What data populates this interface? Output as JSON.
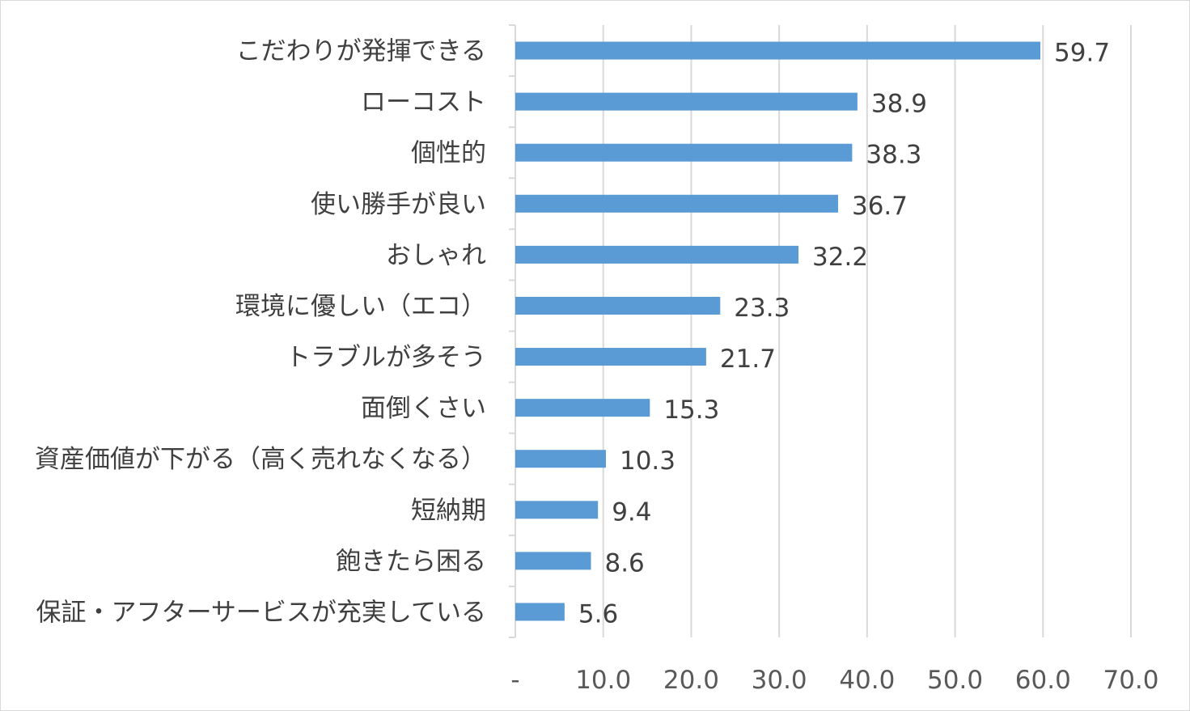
{
  "chart_data": {
    "type": "bar",
    "orientation": "horizontal",
    "categories": [
      "こだわりが発揮できる",
      "ローコスト",
      "個性的",
      "使い勝手が良い",
      "おしゃれ",
      "環境に優しい（エコ）",
      "トラブルが多そう",
      "面倒くさい",
      "資産価値が下がる（高く売れなくなる）",
      "短納期",
      "飽きたら困る",
      "保証・アフターサービスが充実している"
    ],
    "values": [
      59.7,
      38.9,
      38.3,
      36.7,
      32.2,
      23.3,
      21.7,
      15.3,
      10.3,
      9.4,
      8.6,
      5.6
    ],
    "value_labels": [
      "59.7",
      "38.9",
      "38.3",
      "36.7",
      "32.2",
      "23.3",
      "21.7",
      "15.3",
      "10.3",
      "9.4",
      "8.6",
      "5.6"
    ],
    "xlim": [
      0,
      70
    ],
    "ticks": [
      "-",
      "10.0",
      "20.0",
      "30.0",
      "40.0",
      "50.0",
      "60.0",
      "70.0"
    ],
    "title": "",
    "xlabel": "",
    "ylabel": "",
    "grid": true,
    "legend": "none",
    "colors": {
      "bar": "#5b9bd5",
      "grid": "#d9d9d9",
      "text": "#404040",
      "tick_text": "#595959"
    }
  }
}
